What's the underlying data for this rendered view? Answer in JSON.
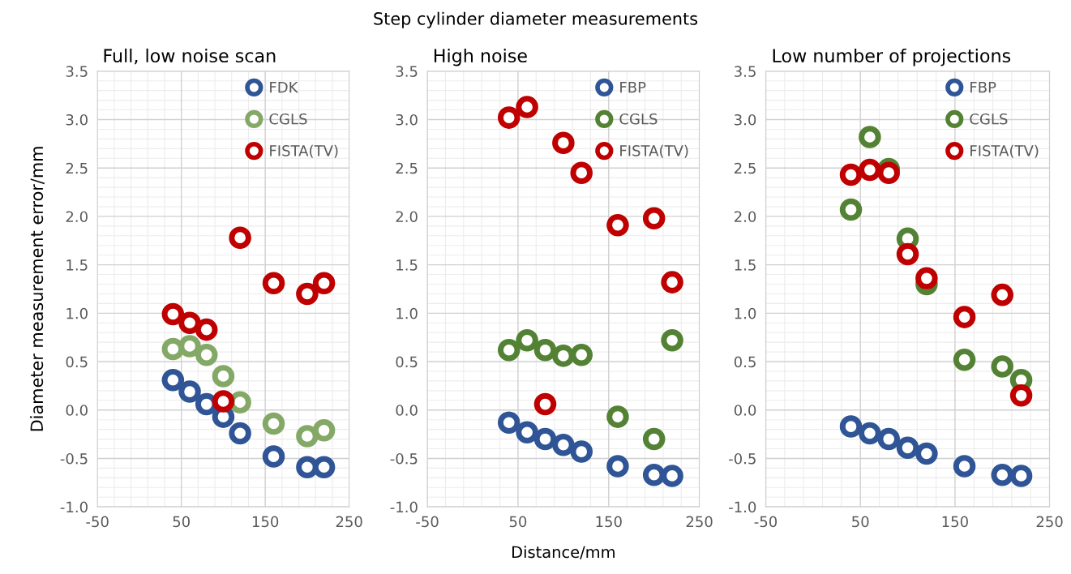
{
  "chart_data": [
    {
      "type": "scatter",
      "title": "Full, low noise scan",
      "ylabel": "Diameter measurement error/mm",
      "annotations": [
        "Step cylinder diameter measurements"
      ],
      "x": [
        40,
        60,
        80,
        100,
        120,
        160,
        200,
        220
      ],
      "series": [
        {
          "name": "FDK",
          "color": "#2f5597",
          "values": [
            0.31,
            0.19,
            0.06,
            -0.07,
            -0.24,
            -0.48,
            -0.59,
            -0.59
          ]
        },
        {
          "name": "CGLS",
          "color": "#84a866",
          "values": [
            0.63,
            0.66,
            0.57,
            0.35,
            0.08,
            -0.14,
            -0.27,
            -0.21
          ]
        },
        {
          "name": "FISTA(TV)",
          "color": "#c00000",
          "values": [
            0.99,
            0.9,
            0.83,
            0.09,
            1.78,
            1.31,
            1.2,
            1.31
          ]
        }
      ],
      "xlim": [
        -50,
        250
      ],
      "xticks": [
        -50,
        50,
        150,
        250
      ],
      "ylim": [
        -1.0,
        3.5
      ],
      "yticks": [
        {
          "value": -1.0,
          "label": "-1.0"
        },
        {
          "value": -0.5,
          "label": "-0.5"
        },
        {
          "value": 0.0,
          "label": "0.0"
        },
        {
          "value": 0.5,
          "label": "0.5"
        },
        {
          "value": 1.0,
          "label": "1.0"
        },
        {
          "value": 1.5,
          "label": "1.5"
        },
        {
          "value": 2.0,
          "label": "2.0"
        },
        {
          "value": 2.5,
          "label": "2.5"
        },
        {
          "value": 3.0,
          "label": "3.0"
        },
        {
          "value": 3.5,
          "label": "3.5"
        }
      ],
      "grid": true,
      "legend": "top right",
      "marker": "circle"
    },
    {
      "type": "scatter",
      "title": "High noise",
      "xlabel": "Distance/mm",
      "x": [
        40,
        60,
        80,
        100,
        120,
        160,
        200,
        220
      ],
      "series": [
        {
          "name": "FBP",
          "color": "#2f5597",
          "values": [
            -0.13,
            -0.23,
            -0.3,
            -0.36,
            -0.43,
            -0.58,
            -0.67,
            -0.68
          ]
        },
        {
          "name": "CGLS",
          "color": "#548235",
          "values": [
            0.62,
            0.72,
            0.62,
            0.56,
            0.57,
            -0.07,
            -0.3,
            0.72
          ]
        },
        {
          "name": "FISTA(TV)",
          "color": "#c00000",
          "values": [
            3.02,
            3.13,
            0.06,
            2.76,
            2.45,
            1.91,
            1.98,
            1.32
          ]
        }
      ],
      "xlim": [
        -50,
        250
      ],
      "xticks": [
        -50,
        50,
        150,
        250
      ],
      "ylim": [
        -1.0,
        3.5
      ],
      "yticks": [
        {
          "value": -1.0,
          "label": "-1.0"
        },
        {
          "value": -0.5,
          "label": "-0.5"
        },
        {
          "value": 0.0,
          "label": "0.0"
        },
        {
          "value": 0.5,
          "label": "0.5"
        },
        {
          "value": 1.0,
          "label": "1.0"
        },
        {
          "value": 1.5,
          "label": "1.5"
        },
        {
          "value": 2.0,
          "label": "2.0"
        },
        {
          "value": 2.5,
          "label": "2.5"
        },
        {
          "value": 3.0,
          "label": "3.0"
        },
        {
          "value": 3.5,
          "label": "3.5"
        }
      ],
      "grid": true,
      "legend": "top right",
      "marker": "circle"
    },
    {
      "type": "scatter",
      "title": "Low number of projections",
      "x": [
        40,
        60,
        80,
        100,
        120,
        160,
        200,
        220
      ],
      "series": [
        {
          "name": "FBP",
          "color": "#2f5597",
          "values": [
            -0.17,
            -0.24,
            -0.3,
            -0.39,
            -0.45,
            -0.58,
            -0.67,
            -0.68
          ]
        },
        {
          "name": "CGLS",
          "color": "#548235",
          "values": [
            2.07,
            2.82,
            2.49,
            1.77,
            1.3,
            0.52,
            0.45,
            0.31
          ]
        },
        {
          "name": "FISTA(TV)",
          "color": "#c00000",
          "values": [
            2.43,
            2.48,
            2.45,
            1.61,
            1.36,
            0.96,
            1.19,
            0.15
          ]
        }
      ],
      "xlim": [
        -50,
        250
      ],
      "xticks": [
        -50,
        50,
        150,
        250
      ],
      "ylim": [
        -1.0,
        3.5
      ],
      "yticks": [
        {
          "value": -1.0,
          "label": "-1.0"
        },
        {
          "value": -0.5,
          "label": "-0.5"
        },
        {
          "value": 0.0,
          "label": "0.0"
        },
        {
          "value": 0.5,
          "label": "0.5"
        },
        {
          "value": 1.0,
          "label": "1.0"
        },
        {
          "value": 1.5,
          "label": "1.5"
        },
        {
          "value": 2.0,
          "label": "2.0"
        },
        {
          "value": 2.5,
          "label": "2.5"
        },
        {
          "value": 3.0,
          "label": "3.0"
        },
        {
          "value": 3.5,
          "label": "3.5"
        }
      ],
      "grid": true,
      "legend": "top right",
      "marker": "circle"
    }
  ]
}
